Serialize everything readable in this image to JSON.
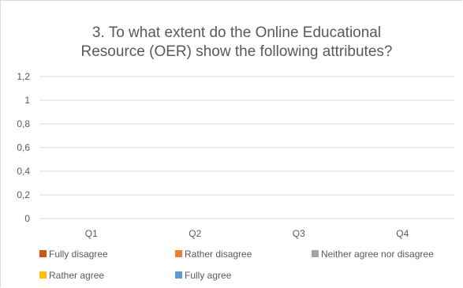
{
  "chart_data": {
    "type": "bar",
    "title": "3. To what extent do the Online Educational Resource (OER) show the following attributes?",
    "title_lines": [
      "3. To what extent do the Online Educational",
      "Resource (OER) show the following attributes?"
    ],
    "categories": [
      "Q1",
      "Q2",
      "Q3",
      "Q4"
    ],
    "y_ticks": [
      "0",
      "0,2",
      "0,4",
      "0,6",
      "0,8",
      "1",
      "1,2"
    ],
    "ylim": [
      0,
      1.2
    ],
    "grid": true,
    "legend_position": "bottom",
    "series": [
      {
        "name": "Fully disagree",
        "color": "#c55a11",
        "values": [
          0,
          0,
          0,
          0
        ]
      },
      {
        "name": "Rather disagree",
        "color": "#ed7d31",
        "values": [
          0,
          0,
          0,
          0
        ]
      },
      {
        "name": "Neither agree nor disagree",
        "color": "#a5a5a5",
        "values": [
          0,
          0,
          0,
          0
        ]
      },
      {
        "name": "Rather agree",
        "color": "#ffc000",
        "values": [
          0,
          0,
          0,
          0
        ]
      },
      {
        "name": "Fully agree",
        "color": "#5b9bd5",
        "values": [
          0,
          0,
          0,
          0
        ]
      }
    ]
  }
}
